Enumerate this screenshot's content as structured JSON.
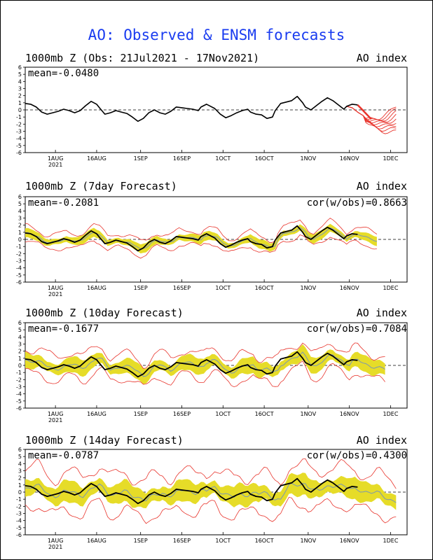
{
  "title": "AO: Observed & ENSM forecasts",
  "colors": {
    "title": "#1a3cf0",
    "obs": "#000000",
    "spread": "#e6dc28",
    "members": "#e8342c",
    "mean": "#7a96b4",
    "zero": "#000000"
  },
  "x_labels": [
    {
      "day": 11,
      "label": "1AUG",
      "sub": "2021"
    },
    {
      "day": 26,
      "label": "16AUG",
      "sub": ""
    },
    {
      "day": 42,
      "label": "1SEP",
      "sub": ""
    },
    {
      "day": 57,
      "label": "16SEP",
      "sub": ""
    },
    {
      "day": 72,
      "label": "1OCT",
      "sub": ""
    },
    {
      "day": 87,
      "label": "16OCT",
      "sub": ""
    },
    {
      "day": 103,
      "label": "1NOV",
      "sub": ""
    },
    {
      "day": 118,
      "label": "16NOV",
      "sub": ""
    },
    {
      "day": 133,
      "label": "1DEC",
      "sub": ""
    }
  ],
  "y_ticks": [
    "6",
    "5",
    "4",
    "3",
    "2",
    "1",
    "0",
    "-1",
    "-2",
    "-3",
    "-4",
    "-5",
    "-6"
  ],
  "obs_series": [
    [
      0,
      0.9
    ],
    [
      2,
      0.8
    ],
    [
      4,
      0.4
    ],
    [
      6,
      -0.3
    ],
    [
      8,
      -0.6
    ],
    [
      10,
      -0.4
    ],
    [
      12,
      -0.2
    ],
    [
      14,
      0.1
    ],
    [
      16,
      -0.1
    ],
    [
      18,
      -0.4
    ],
    [
      20,
      -0.1
    ],
    [
      22,
      0.6
    ],
    [
      24,
      1.2
    ],
    [
      26,
      0.8
    ],
    [
      27,
      0.3
    ],
    [
      29,
      -0.6
    ],
    [
      31,
      -0.4
    ],
    [
      33,
      -0.1
    ],
    [
      35,
      -0.3
    ],
    [
      37,
      -0.5
    ],
    [
      39,
      -1.0
    ],
    [
      41,
      -1.6
    ],
    [
      43,
      -1.2
    ],
    [
      45,
      -0.4
    ],
    [
      47,
      0.0
    ],
    [
      49,
      -0.4
    ],
    [
      51,
      -0.6
    ],
    [
      53,
      -0.2
    ],
    [
      55,
      0.4
    ],
    [
      57,
      0.3
    ],
    [
      59,
      0.2
    ],
    [
      61,
      0.1
    ],
    [
      63,
      -0.1
    ],
    [
      64,
      0.4
    ],
    [
      66,
      0.8
    ],
    [
      67,
      0.6
    ],
    [
      69,
      0.2
    ],
    [
      71,
      -0.6
    ],
    [
      73,
      -1.1
    ],
    [
      75,
      -0.8
    ],
    [
      77,
      -0.4
    ],
    [
      79,
      -0.1
    ],
    [
      81,
      0.1
    ],
    [
      82,
      -0.3
    ],
    [
      84,
      -0.6
    ],
    [
      86,
      -0.7
    ],
    [
      88,
      -1.2
    ],
    [
      90,
      -1.0
    ],
    [
      91,
      -0.1
    ],
    [
      93,
      0.9
    ],
    [
      95,
      1.1
    ],
    [
      97,
      1.3
    ],
    [
      99,
      1.9
    ],
    [
      101,
      1.0
    ],
    [
      102,
      0.4
    ],
    [
      104,
      0.0
    ],
    [
      106,
      0.6
    ],
    [
      108,
      1.2
    ],
    [
      110,
      1.7
    ],
    [
      112,
      1.3
    ],
    [
      114,
      0.7
    ],
    [
      116,
      0.1
    ],
    [
      117,
      0.5
    ],
    [
      119,
      0.8
    ],
    [
      121,
      0.7
    ]
  ],
  "panels": [
    {
      "heading": "1000mb Z (Obs: 21Jul2021 - 17Nov2021)",
      "mean_label": "mean=-0.0480",
      "right_label": "AO index",
      "cor_label": "",
      "kind": "obs"
    },
    {
      "heading": "1000mb Z (7day Forecast)",
      "mean_label": "mean=-0.2081",
      "right_label": "AO index",
      "cor_label": "cor(w/obs)=0.8663",
      "kind": "fc",
      "lead": 7,
      "halfwidth": 0.5,
      "outer": 1.0,
      "noise": 0.15,
      "mean_lag": 1
    },
    {
      "heading": "1000mb Z (10day Forecast)",
      "mean_label": "mean=-0.1677",
      "right_label": "AO index",
      "cor_label": "cor(w/obs)=0.7084",
      "kind": "fc",
      "lead": 10,
      "halfwidth": 0.9,
      "outer": 1.7,
      "noise": 0.35,
      "mean_lag": 2
    },
    {
      "heading": "1000mb Z (14day Forecast)",
      "mean_label": "mean=-0.0787",
      "right_label": "AO index",
      "cor_label": "cor(w/obs)=0.4300",
      "kind": "fc",
      "lead": 14,
      "halfwidth": 1.2,
      "outer": 2.6,
      "noise": 0.55,
      "mean_lag": 3
    }
  ],
  "chart_data": [
    {
      "type": "line",
      "title": "1000mb Z (Obs: 21Jul2021 - 17Nov2021)",
      "ylabel": "AO index",
      "ylim": [
        -6,
        6
      ],
      "x_axis": [
        "1AUG",
        "16AUG",
        "1SEP",
        "16SEP",
        "1OCT",
        "16OCT",
        "1NOV",
        "16NOV",
        "1DEC"
      ],
      "series": [],
      "annotations": [
        "mean=-0.0480"
      ]
    },
    {
      "type": "area",
      "title": "1000mb Z (7day Forecast)",
      "ylabel": "AO index",
      "ylim": [
        -6,
        6
      ],
      "annotations": [
        "mean=-0.2081",
        "cor(w/obs)=0.8663"
      ]
    },
    {
      "type": "area",
      "title": "1000mb Z (10day Forecast)",
      "ylabel": "AO index",
      "ylim": [
        -6,
        6
      ],
      "annotations": [
        "mean=-0.1677",
        "cor(w/obs)=0.7084"
      ]
    },
    {
      "type": "area",
      "title": "1000mb Z (14day Forecast)",
      "ylabel": "AO index",
      "ylim": [
        -6,
        6
      ],
      "annotations": [
        "mean=-0.0787",
        "cor(w/obs)=0.4300"
      ]
    }
  ]
}
